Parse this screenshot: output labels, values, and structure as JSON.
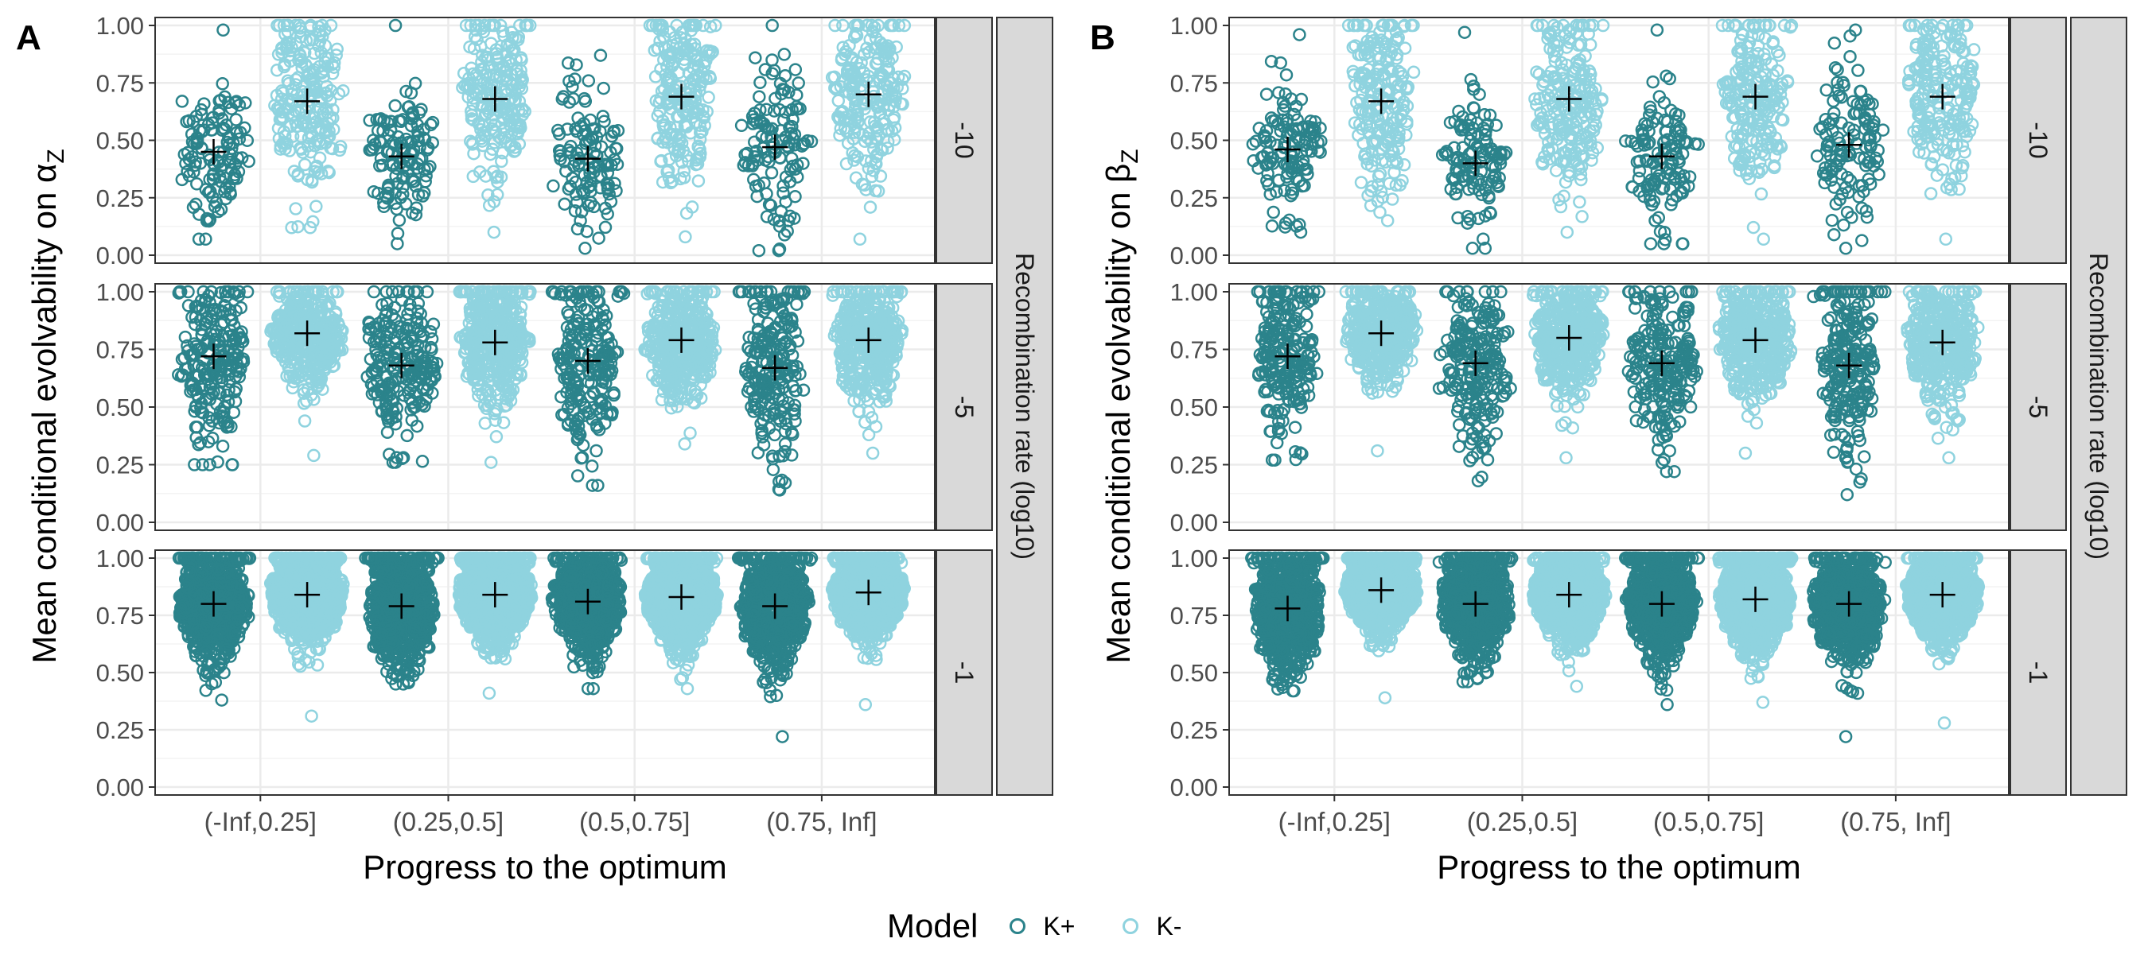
{
  "chart_data": [
    {
      "type": "scatter",
      "panel_tag": "A",
      "xlabel": "Progress to the optimum",
      "ylabel_text": "Mean conditional evolvability on ",
      "ylabel_symbol": "α",
      "ylabel_subscript": "Z",
      "facet_strip_label": "Recombination rate (log10)",
      "categories": [
        "(-Inf,0.25]",
        "(0.25,0.5]",
        "(0.5,0.75]",
        "(0.75, Inf]"
      ],
      "ylim": [
        0,
        1
      ],
      "yticks": [
        "0.00",
        "0.25",
        "0.50",
        "0.75",
        "1.00"
      ],
      "facets": [
        {
          "label": "-10",
          "series": [
            {
              "name": "K+",
              "min": [
                0.07,
                0.05,
                0.03,
                0.02
              ],
              "max": [
                0.98,
                1.0,
                0.87,
                1.0
              ],
              "mean": [
                0.45,
                0.43,
                0.42,
                0.47
              ]
            },
            {
              "name": "K-",
              "min": [
                0.12,
                0.1,
                0.08,
                0.07
              ],
              "max": [
                1.0,
                1.0,
                1.0,
                1.0
              ],
              "mean": [
                0.67,
                0.68,
                0.69,
                0.7
              ]
            }
          ]
        },
        {
          "label": "-5",
          "series": [
            {
              "name": "K+",
              "min": [
                0.25,
                0.26,
                0.16,
                0.14
              ],
              "max": [
                1.0,
                1.0,
                1.0,
                1.0
              ],
              "mean": [
                0.72,
                0.68,
                0.7,
                0.67
              ]
            },
            {
              "name": "K-",
              "min": [
                0.29,
                0.26,
                0.34,
                0.3
              ],
              "max": [
                1.0,
                1.0,
                1.0,
                1.0
              ],
              "mean": [
                0.82,
                0.78,
                0.79,
                0.79
              ]
            }
          ]
        },
        {
          "label": "-1",
          "series": [
            {
              "name": "K+",
              "min": [
                0.38,
                0.45,
                0.43,
                0.22
              ],
              "max": [
                1.0,
                1.0,
                1.0,
                1.0
              ],
              "mean": [
                0.8,
                0.79,
                0.81,
                0.79
              ]
            },
            {
              "name": "K-",
              "min": [
                0.31,
                0.41,
                0.43,
                0.36
              ],
              "max": [
                1.0,
                1.0,
                1.0,
                1.0
              ],
              "mean": [
                0.84,
                0.84,
                0.83,
                0.85
              ]
            }
          ]
        }
      ]
    },
    {
      "type": "scatter",
      "panel_tag": "B",
      "xlabel": "Progress to the optimum",
      "ylabel_text": "Mean conditional evolvability on ",
      "ylabel_symbol": "β",
      "ylabel_subscript": "Z",
      "facet_strip_label": "Recombination rate (log10)",
      "categories": [
        "(-Inf,0.25]",
        "(0.25,0.5]",
        "(0.5,0.75]",
        "(0.75, Inf]"
      ],
      "ylim": [
        0,
        1
      ],
      "yticks": [
        "0.00",
        "0.25",
        "0.50",
        "0.75",
        "1.00"
      ],
      "facets": [
        {
          "label": "-10",
          "series": [
            {
              "name": "K+",
              "min": [
                0.1,
                0.03,
                0.05,
                0.03
              ],
              "max": [
                0.96,
                0.97,
                0.98,
                0.98
              ],
              "mean": [
                0.46,
                0.4,
                0.43,
                0.48
              ]
            },
            {
              "name": "K-",
              "min": [
                0.15,
                0.1,
                0.07,
                0.07
              ],
              "max": [
                1.0,
                1.0,
                1.0,
                1.0
              ],
              "mean": [
                0.67,
                0.68,
                0.69,
                0.69
              ]
            }
          ]
        },
        {
          "label": "-5",
          "series": [
            {
              "name": "K+",
              "min": [
                0.27,
                0.18,
                0.22,
                0.12
              ],
              "max": [
                1.0,
                1.0,
                1.0,
                1.0
              ],
              "mean": [
                0.72,
                0.69,
                0.69,
                0.68
              ]
            },
            {
              "name": "K-",
              "min": [
                0.31,
                0.28,
                0.3,
                0.28
              ],
              "max": [
                1.0,
                1.0,
                1.0,
                1.0
              ],
              "mean": [
                0.82,
                0.8,
                0.79,
                0.78
              ]
            }
          ]
        },
        {
          "label": "-1",
          "series": [
            {
              "name": "K+",
              "min": [
                0.42,
                0.46,
                0.36,
                0.22
              ],
              "max": [
                1.0,
                1.0,
                1.0,
                1.0
              ],
              "mean": [
                0.78,
                0.8,
                0.8,
                0.8
              ]
            },
            {
              "name": "K-",
              "min": [
                0.39,
                0.44,
                0.37,
                0.28
              ],
              "max": [
                1.0,
                1.0,
                1.0,
                1.0
              ],
              "mean": [
                0.86,
                0.84,
                0.82,
                0.84
              ]
            }
          ]
        }
      ]
    }
  ],
  "legend": {
    "title": "Model",
    "items": [
      {
        "label": "K+",
        "color": "#2b838b"
      },
      {
        "label": "K-",
        "color": "#8fd3df"
      }
    ]
  },
  "colors": {
    "k_plus": "#2b838b",
    "k_minus": "#8fd3df",
    "strip": "#d9d9d9",
    "grid": "#ebebeb"
  }
}
